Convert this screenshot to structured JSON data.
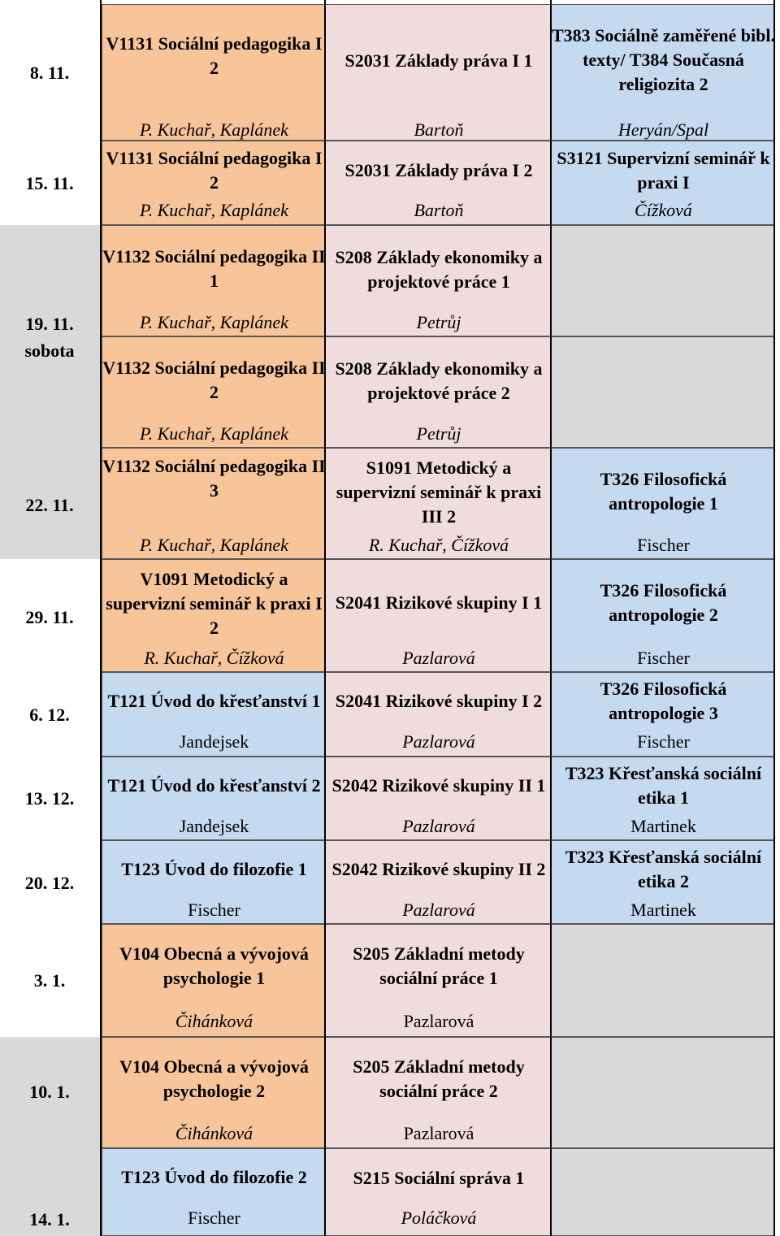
{
  "dates": [
    "8. 11.",
    "15. 11.",
    "19. 11.",
    "sobota",
    "22. 11.",
    "29. 11.",
    "6. 12.",
    "13. 12.",
    "20. 12.",
    "3. 1.",
    "10. 1.",
    "14. 1."
  ],
  "rows": [
    {
      "col1": {
        "title": "V1131 Sociální pedagogika I 2",
        "teacher": "P. Kuchař, Kaplánek"
      },
      "col2": {
        "title": "S2031 Základy práva I 1",
        "teacher": "Bartoň"
      },
      "col3": {
        "title": "T383 Sociálně zaměřené bibl. texty/ T384 Současná religiozita 2",
        "teacher": "Heryán/Spal"
      }
    },
    {
      "col1": {
        "title": "V1131 Sociální pedagogika I 2",
        "teacher": "P. Kuchař, Kaplánek"
      },
      "col2": {
        "title": "S2031 Základy práva I 2",
        "teacher": "Bartoň"
      },
      "col3": {
        "title": "S3121 Supervizní seminář k praxi I",
        "teacher": "Čížková"
      }
    },
    {
      "col1": {
        "title": "V1132 Sociální pedagogika II 1",
        "teacher": "P. Kuchař, Kaplánek"
      },
      "col2": {
        "title": "S208 Základy ekonomiky a projektové práce 1",
        "teacher": "Petrůj"
      }
    },
    {
      "col1": {
        "title": "V1132 Sociální pedagogika II 2",
        "teacher": "P. Kuchař, Kaplánek"
      },
      "col2": {
        "title": "S208 Základy ekonomiky a projektové práce 2",
        "teacher": "Petrůj"
      }
    },
    {
      "col1": {
        "title": "V1132 Sociální pedagogika II 3",
        "teacher": "P. Kuchař, Kaplánek"
      },
      "col2": {
        "title": "S1091 Metodický a supervizní seminář k praxi III 2",
        "teacher": "R. Kuchař, Čížková"
      },
      "col3": {
        "title": "T326 Filosofická antropologie 1",
        "teacher": "Fischer"
      }
    },
    {
      "col1": {
        "title": "V1091 Metodický a supervizní seminář k praxi I 2",
        "teacher": "R. Kuchař, Čížková"
      },
      "col2": {
        "title": "S2041 Rizikové skupiny I 1",
        "teacher": "Pazlarová"
      },
      "col3": {
        "title": "T326 Filosofická antropologie 2",
        "teacher": "Fischer"
      }
    },
    {
      "col1": {
        "title": "T121 Úvod do křesťanství 1",
        "teacher": "Jandejsek"
      },
      "col2": {
        "title": "S2041 Rizikové skupiny I 2",
        "teacher": "Pazlarová"
      },
      "col3": {
        "title": "T326 Filosofická antropologie 3",
        "teacher": "Fischer"
      }
    },
    {
      "col1": {
        "title": "T121 Úvod do křesťanství 2",
        "teacher": "Jandejsek"
      },
      "col2": {
        "title": "S2042 Rizikové skupiny II 1",
        "teacher": "Pazlarová"
      },
      "col3": {
        "title": "T323 Křesťanská sociální etika 1",
        "teacher": "Martinek"
      }
    },
    {
      "col1": {
        "title": "T123 Úvod do filozofie 1",
        "teacher": "Fischer"
      },
      "col2": {
        "title": "S2042 Rizikové skupiny II 2",
        "teacher": "Pazlarová"
      },
      "col3": {
        "title": "T323 Křesťanská sociální etika 2",
        "teacher": "Martinek"
      }
    },
    {
      "col1": {
        "title": "V104 Obecná a vývojová psychologie 1",
        "teacher": "Čihánková"
      },
      "col2": {
        "title": "S205 Základní metody sociální práce 1",
        "teacher": "Pazlarová"
      }
    },
    {
      "col1": {
        "title": "V104 Obecná a vývojová psychologie 2",
        "teacher": "Čihánková"
      },
      "col2": {
        "title": "S205 Základní metody sociální práce 2",
        "teacher": "Pazlarová"
      }
    },
    {
      "col1": {
        "title": "T123 Úvod do filozofie 2",
        "teacher": "Fischer"
      },
      "col2": {
        "title": "S215 Sociální správa 1",
        "teacher": "Poláčková"
      }
    }
  ],
  "colors": {
    "pedagogy": "#f8c49a",
    "social": "#f1dcdd",
    "theology": "#c5d9f1",
    "empty": "#d9d9d9"
  }
}
